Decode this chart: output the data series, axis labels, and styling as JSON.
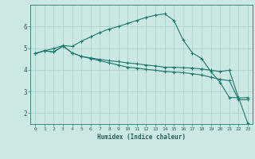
{
  "xlabel": "Humidex (Indice chaleur)",
  "bg_color": "#cce8e4",
  "grid_color": "#aaccca",
  "line_color": "#1a7a6e",
  "xlim": [
    -0.5,
    23.5
  ],
  "ylim": [
    1.5,
    7.0
  ],
  "yticks": [
    2,
    3,
    4,
    5,
    6
  ],
  "xticks": [
    0,
    1,
    2,
    3,
    4,
    5,
    6,
    7,
    8,
    9,
    10,
    11,
    12,
    13,
    14,
    15,
    16,
    17,
    18,
    19,
    20,
    21,
    22,
    23
  ],
  "series": [
    {
      "x": [
        0,
        1,
        2,
        3,
        4,
        5,
        6,
        7,
        8,
        9,
        10,
        11,
        12,
        13,
        14,
        15,
        16,
        17,
        18,
        19,
        20,
        21,
        22,
        23
      ],
      "y": [
        4.75,
        4.88,
        4.82,
        5.1,
        4.78,
        4.62,
        4.55,
        4.48,
        4.42,
        4.38,
        4.32,
        4.28,
        4.22,
        4.18,
        4.12,
        4.12,
        4.1,
        4.08,
        4.04,
        3.98,
        3.92,
        3.98,
        2.7,
        2.72
      ],
      "marker": "+"
    },
    {
      "x": [
        0,
        1,
        2,
        3,
        4,
        5,
        6,
        7,
        8,
        9,
        10,
        11,
        12,
        13,
        14,
        15,
        16,
        17,
        18,
        19,
        20,
        21,
        22,
        23
      ],
      "y": [
        4.75,
        4.88,
        4.82,
        5.1,
        4.78,
        4.62,
        4.52,
        4.42,
        4.32,
        4.22,
        4.12,
        4.08,
        4.02,
        3.98,
        3.92,
        3.9,
        3.87,
        3.82,
        3.76,
        3.66,
        3.56,
        3.5,
        2.62,
        2.62
      ],
      "marker": "+"
    },
    {
      "x": [
        0,
        1,
        2,
        3,
        4,
        5,
        6,
        7,
        8,
        9,
        10,
        11,
        12,
        13,
        14,
        15,
        16,
        17,
        18,
        19,
        20,
        21,
        22,
        23
      ],
      "y": [
        4.75,
        4.88,
        4.98,
        5.12,
        5.08,
        5.32,
        5.52,
        5.72,
        5.88,
        6.0,
        6.14,
        6.28,
        6.42,
        6.52,
        6.58,
        6.28,
        5.38,
        4.78,
        4.52,
        3.92,
        3.42,
        2.72,
        2.72,
        1.52
      ],
      "marker": "+"
    }
  ]
}
